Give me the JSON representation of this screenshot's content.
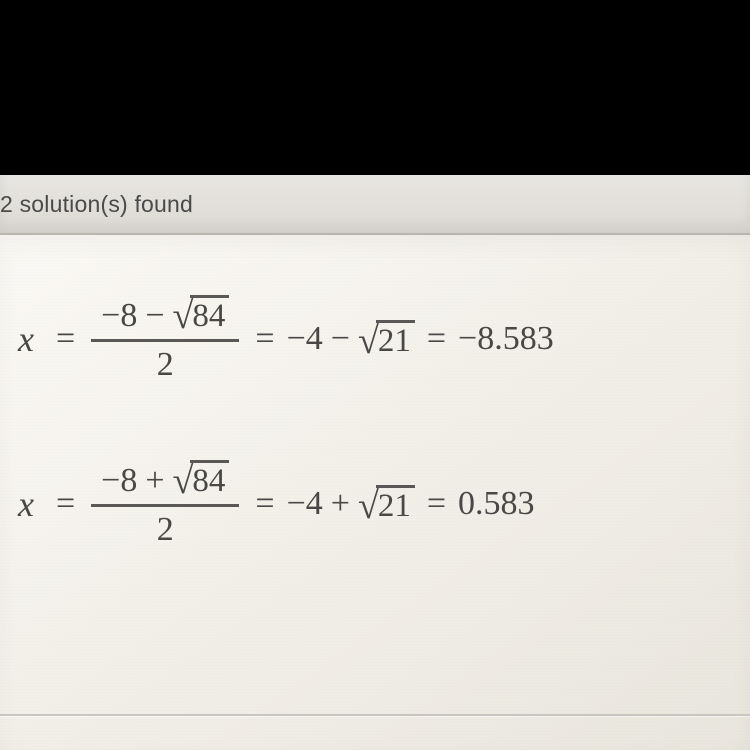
{
  "colors": {
    "page_bg": "#000000",
    "header_bg_top": "#e8e6e2",
    "header_bg_bottom": "#dcd9d4",
    "header_text": "#4a4a4a",
    "content_bg_start": "#fbf9f5",
    "content_bg_end": "#e9e6de",
    "math_text": "#4a4846",
    "rule_color": "#5a5856",
    "divider_color": "#c9c6bf"
  },
  "typography": {
    "header_family": "Arial",
    "header_size_pt": 17,
    "math_family": "Georgia",
    "math_size_pt": 26
  },
  "header": {
    "text": "2 solution(s) found"
  },
  "equations": [
    {
      "variable": "x",
      "fraction": {
        "numerator_lead": "−8",
        "numerator_op": "−",
        "radicand": "84",
        "denominator": "2"
      },
      "simplified_lead": "−4",
      "simplified_op": "−",
      "simplified_radicand": "21",
      "decimal": "−8.583"
    },
    {
      "variable": "x",
      "fraction": {
        "numerator_lead": "−8",
        "numerator_op": "+",
        "radicand": "84",
        "denominator": "2"
      },
      "simplified_lead": "−4",
      "simplified_op": "+",
      "simplified_radicand": "21",
      "decimal": "0.583"
    }
  ],
  "glyphs": {
    "equals": "=",
    "surd": "√"
  }
}
